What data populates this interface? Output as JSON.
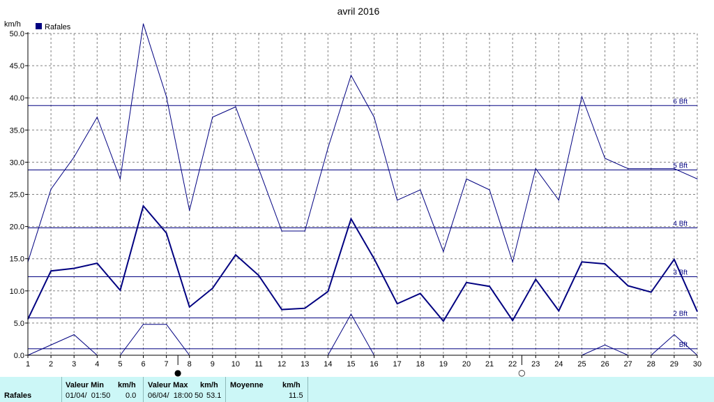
{
  "chart_data": {
    "type": "line",
    "title": "avril 2016",
    "ylabel": "km/h",
    "xlabel": "",
    "ylim": [
      0,
      50
    ],
    "yticks": [
      "0.0",
      "5.0",
      "10.0",
      "15.0",
      "20.0",
      "25.0",
      "30.0",
      "35.0",
      "40.0",
      "45.0",
      "50.0"
    ],
    "x": [
      1,
      2,
      3,
      4,
      5,
      6,
      7,
      8,
      9,
      10,
      11,
      12,
      13,
      14,
      15,
      16,
      17,
      18,
      19,
      20,
      21,
      22,
      23,
      24,
      25,
      26,
      27,
      28,
      29,
      30
    ],
    "legend": "Rafales",
    "grid": true,
    "series": [
      {
        "name": "Rafales",
        "role": "max",
        "values": [
          14.5,
          25.8,
          30.8,
          37.0,
          27.4,
          51.5,
          40.2,
          22.5,
          37.0,
          38.6,
          29.0,
          19.3,
          19.3,
          32.2,
          43.5,
          37.0,
          24.1,
          25.7,
          16.1,
          27.4,
          25.7,
          14.5,
          29.0,
          24.1,
          40.2,
          30.6,
          29.0,
          29.0,
          29.0,
          27.4
        ]
      },
      {
        "role": "average",
        "values": [
          5.6,
          13.1,
          13.5,
          14.3,
          10.1,
          23.2,
          19.0,
          7.5,
          10.4,
          15.6,
          12.4,
          7.1,
          7.3,
          9.9,
          21.2,
          15.0,
          8.0,
          9.6,
          5.3,
          11.3,
          10.7,
          5.4,
          11.8,
          6.9,
          14.5,
          14.2,
          10.8,
          9.8,
          14.9,
          6.8
        ]
      },
      {
        "role": "min",
        "values": [
          0,
          1.6,
          3.2,
          0,
          0,
          4.8,
          4.8,
          0,
          null,
          null,
          null,
          null,
          null,
          0,
          6.4,
          0,
          null,
          null,
          null,
          null,
          null,
          null,
          null,
          null,
          0,
          1.6,
          0,
          0,
          3.2,
          0
        ]
      }
    ],
    "reference_lines": [
      {
        "label": "Bft",
        "value": 1.0
      },
      {
        "label": "2 Bft",
        "value": 5.8
      },
      {
        "label": "3 Bft",
        "value": 12.2
      },
      {
        "label": "4 Bft",
        "value": 19.8
      },
      {
        "label": "5 Bft",
        "value": 28.8
      },
      {
        "label": "6 Bft",
        "value": 38.8
      }
    ],
    "moon_phases": [
      {
        "x": 7.5,
        "symbol": "●"
      },
      {
        "x": 22.4,
        "symbol": "○"
      }
    ],
    "colors": {
      "series": "#000080",
      "grid": "#808080",
      "axis": "#000000"
    }
  },
  "stats": {
    "row_label": "Rafales",
    "min_header": "Valeur Min",
    "min_unit": "km/h",
    "min_date": "01/04/  01:50",
    "min_value": "0.0",
    "max_header": "Valeur Max",
    "max_unit": "km/h",
    "max_date": "06/04/  18:00",
    "max_date_suffix": "50",
    "max_value": "53.1",
    "avg_header": "Moyenne",
    "avg_unit": "km/h",
    "avg_value": "11.5"
  }
}
